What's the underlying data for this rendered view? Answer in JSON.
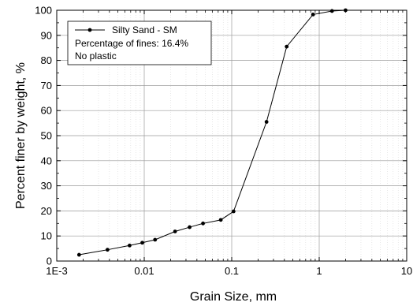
{
  "chart_data": {
    "type": "line",
    "xscale": "log",
    "xlabel": "Grain Size, mm",
    "ylabel": "Percent finer by weight, %",
    "xlim": [
      0.001,
      10
    ],
    "ylim": [
      0,
      100
    ],
    "x_tick_values": [
      0.001,
      0.01,
      0.1,
      1,
      10
    ],
    "x_tick_labels": [
      "1E-3",
      "0.01",
      "0.1",
      "1",
      "10"
    ],
    "y_ticks": [
      0,
      10,
      20,
      30,
      40,
      50,
      60,
      70,
      80,
      90,
      100
    ],
    "grid": true,
    "legend_position": "top-left",
    "series": [
      {
        "name": "Silty Sand - SM",
        "color": "#000000",
        "x": [
          0.0018,
          0.0038,
          0.0068,
          0.0095,
          0.0133,
          0.0225,
          0.033,
          0.047,
          0.075,
          0.105,
          0.25,
          0.425,
          0.85,
          1.4,
          2.0
        ],
        "y": [
          2.5,
          4.5,
          6.2,
          7.3,
          8.5,
          11.8,
          13.5,
          15.0,
          16.4,
          19.8,
          55.5,
          85.5,
          98.3,
          99.7,
          100.0
        ]
      }
    ],
    "annotations": [
      "Percentage of fines: 16.4%",
      "No plastic"
    ]
  }
}
